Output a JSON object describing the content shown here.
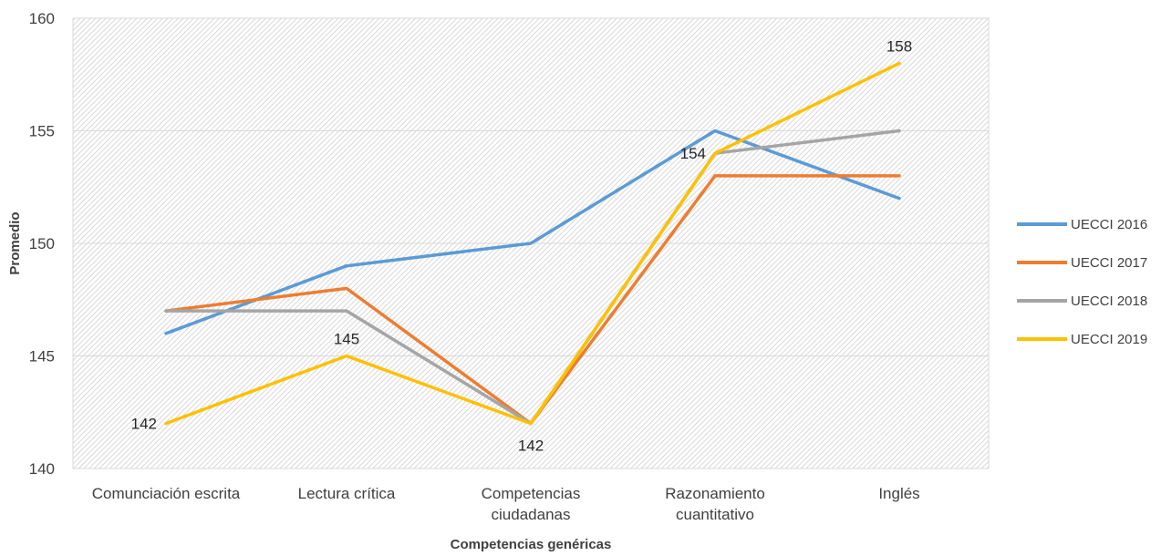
{
  "chart_data": {
    "type": "line",
    "categories": [
      [
        "Comunciación escrita"
      ],
      [
        "Lectura crítica"
      ],
      [
        "Competencias",
        "ciudadanas"
      ],
      [
        "Razonamiento",
        "cuantitativo"
      ],
      [
        "Inglés"
      ]
    ],
    "series": [
      {
        "name": "UECCI 2016",
        "color": "#5B9BD5",
        "values": [
          146,
          149,
          150,
          155,
          152
        ]
      },
      {
        "name": "UECCI 2017",
        "color": "#ED7D31",
        "values": [
          147,
          148,
          142,
          153,
          153
        ]
      },
      {
        "name": "UECCI 2018",
        "color": "#A5A5A5",
        "values": [
          147,
          147,
          142,
          154,
          155
        ]
      },
      {
        "name": "UECCI 2019",
        "color": "#FFC000",
        "values": [
          142,
          145,
          142,
          154,
          158
        ]
      }
    ],
    "data_labels": [
      {
        "series": 3,
        "index": 0,
        "text": "142",
        "side": "left"
      },
      {
        "series": 3,
        "index": 1,
        "text": "145",
        "side": "above"
      },
      {
        "series": 3,
        "index": 2,
        "text": "142",
        "side": "below"
      },
      {
        "series": 3,
        "index": 3,
        "text": "154",
        "side": "left"
      },
      {
        "series": 3,
        "index": 4,
        "text": "158",
        "side": "above"
      }
    ],
    "xlabel": "Competencias genéricas",
    "ylabel": "Promedio",
    "ylim": [
      140,
      160
    ],
    "yticks": [
      140,
      145,
      150,
      155,
      160
    ],
    "grid": true,
    "plot_background": "hatched gray",
    "legend_position": "right"
  }
}
